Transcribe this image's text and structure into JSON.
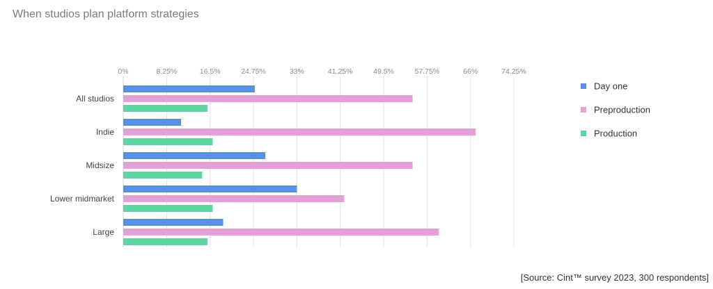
{
  "title": "When studios plan platform strategies",
  "source": "[Source: Cint™ survey 2023, 300 respondents]",
  "chart_data": {
    "type": "bar",
    "orientation": "horizontal",
    "title": "When studios plan platform strategies",
    "xlabel": "",
    "ylabel": "",
    "xlim": [
      0,
      74.25
    ],
    "ticks": [
      "0%",
      "8.25%",
      "16.5%",
      "24.75%",
      "33%",
      "41.25%",
      "49.5%",
      "57.75%",
      "66%",
      "74.25%"
    ],
    "tick_values": [
      0,
      8.25,
      16.5,
      24.75,
      33,
      41.25,
      49.5,
      57.75,
      66,
      74.25
    ],
    "grid": true,
    "legend_position": "right",
    "categories": [
      "All studios",
      "Indie",
      "Midsize",
      "Lower midmarket",
      "Large"
    ],
    "series": [
      {
        "name": "Day one",
        "color": "#5b8fe3",
        "values": [
          25,
          11,
          27,
          33,
          19
        ]
      },
      {
        "name": "Preproduction",
        "color": "#e3a1d8",
        "values": [
          55,
          67,
          55,
          42,
          60
        ]
      },
      {
        "name": "Production",
        "color": "#5fd3a3",
        "values": [
          16,
          17,
          15,
          17,
          16
        ]
      }
    ]
  }
}
